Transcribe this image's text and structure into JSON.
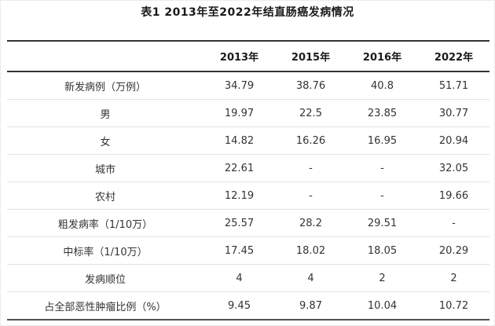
{
  "title": "表1 2013年至2022年结直肠癌发病情况",
  "table": {
    "columns": [
      "",
      "2013年",
      "2015年",
      "2016年",
      "2022年"
    ],
    "rows": [
      {
        "label": "新发病例（万例）",
        "values": [
          "34.79",
          "38.76",
          "40.8",
          "51.71"
        ]
      },
      {
        "label": "男",
        "values": [
          "19.97",
          "22.5",
          "23.85",
          "30.77"
        ]
      },
      {
        "label": "女",
        "values": [
          "14.82",
          "16.26",
          "16.95",
          "20.94"
        ]
      },
      {
        "label": "城市",
        "values": [
          "22.61",
          "-",
          "-",
          "32.05"
        ]
      },
      {
        "label": "农村",
        "values": [
          "12.19",
          "-",
          "-",
          "19.66"
        ]
      },
      {
        "label": "粗发病率（1/10万）",
        "values": [
          "25.57",
          "28.2",
          "29.51",
          "-"
        ]
      },
      {
        "label": "中标率（1/10万）",
        "values": [
          "17.45",
          "18.02",
          "18.05",
          "20.29"
        ]
      },
      {
        "label": "发病顺位",
        "values": [
          "4",
          "4",
          "2",
          "2"
        ]
      },
      {
        "label": "占全部恶性肿瘤比例（%）",
        "values": [
          "9.45",
          "9.87",
          "10.04",
          "10.72"
        ]
      }
    ]
  },
  "colors": {
    "background": "#ffffff",
    "heading_text": "#1a1a1a",
    "body_text": "#333333",
    "heavy_border": "#333333",
    "light_border": "#e3e3e3"
  }
}
